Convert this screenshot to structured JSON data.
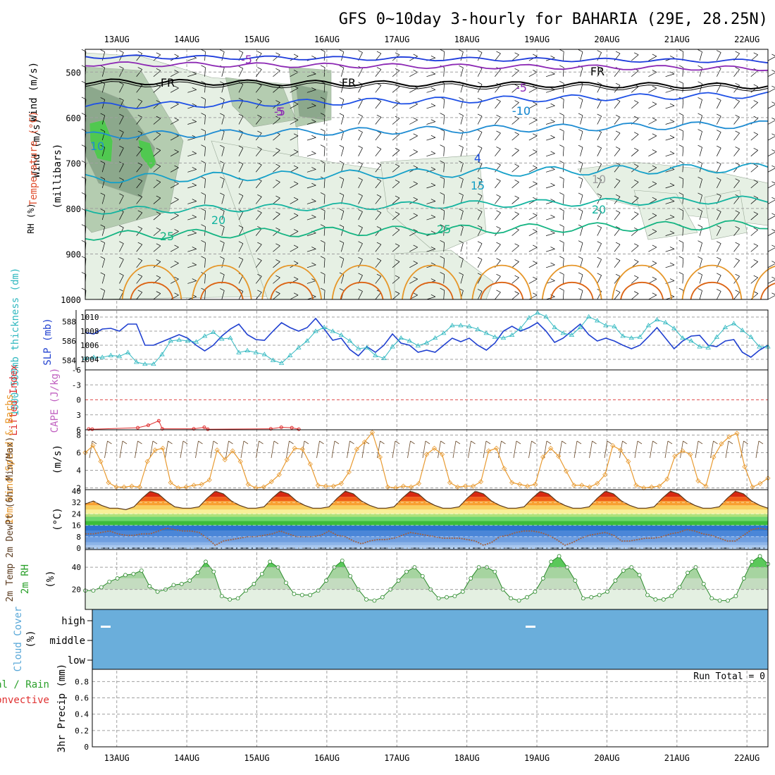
{
  "chart_data": [
    {
      "type": "meteogram",
      "title": "GFS 0~10day 3-hourly for BAHARIA (29E, 28.25N)",
      "x_dates": [
        "13AUG",
        "14AUG",
        "15AUG",
        "16AUG",
        "17AUG",
        "18AUG",
        "19AUG",
        "20AUG",
        "21AUG",
        "22AUG"
      ],
      "x_range_days": [
        12.55,
        22.3
      ],
      "colors": {
        "grid": "#a0a0a0",
        "frame": "#000000"
      }
    },
    {
      "panel": "upper-air",
      "type": "contour",
      "ylabel": "(millibars)",
      "label_wind": "Wind (m/s)",
      "label_temp": "Temperature (°C)",
      "label_rh": "RH (%)",
      "ylim": [
        1000,
        450
      ],
      "yticks": [
        500,
        600,
        700,
        800,
        900,
        1000
      ],
      "contour_labels": [
        "-5",
        "FR",
        "FR",
        "FR",
        "-5",
        "-5",
        "5",
        "-10",
        "10",
        "-10",
        "15",
        "20",
        "20",
        "25",
        "25",
        "4",
        "10"
      ],
      "isotherms_c": [
        -10,
        -5,
        0,
        5,
        10,
        15,
        20,
        25,
        30,
        35
      ],
      "colors": {
        "m10": "#1e3cdc",
        "m5": "#8c28b4",
        "fr": "#000000",
        "p5": "#1e50e6",
        "p10": "#1e8cd2",
        "p15": "#14a0c8",
        "p20": "#14b4a0",
        "p25": "#14b482",
        "p30": "#e69628",
        "p35": "#dc6414",
        "rh_light": "#e6f0e4",
        "rh_mid": "#b4ccb0",
        "rh_dark": "#8ca88c",
        "rh_green": "#50c850"
      }
    },
    {
      "panel": "slp-thickness",
      "type": "line",
      "label_left": "1000-500mb thickness (dm)",
      "label_right": "SLP (mb)",
      "left_ticks": [
        "584",
        "586",
        "588"
      ],
      "right_ticks": [
        "1004",
        "1006",
        "1008",
        "1010"
      ],
      "left_ylim": [
        583,
        589.2
      ],
      "series": [
        {
          "name": "SLP (mb)",
          "color": "#2040d0",
          "values": [
            1007.8,
            1007.6,
            1008.3,
            1008.4,
            1008.0,
            1009.0,
            1009.0,
            1006.0,
            1006.0,
            1006.5,
            1007.0,
            1007.5,
            1007.0,
            1006.0,
            1005.2,
            1006.0,
            1007.3,
            1008.3,
            1009.0,
            1007.5,
            1006.8,
            1006.7,
            1008.0,
            1009.2,
            1008.5,
            1008.0,
            1008.5,
            1009.8,
            1008.3,
            1006.7,
            1007.0,
            1005.4,
            1004.5,
            1005.8,
            1005.0,
            1006.0,
            1007.6,
            1006.3,
            1006.0,
            1005.0,
            1005.3,
            1005.0,
            1006.0,
            1007.0,
            1006.5,
            1007.0,
            1006.0,
            1005.3,
            1006.3,
            1008.0,
            1008.7,
            1008.0,
            1008.5,
            1009.2,
            1008.0,
            1006.4,
            1007.0,
            1008.0,
            1009.0,
            1007.5,
            1006.6,
            1007.0,
            1006.6,
            1006.0,
            1005.5,
            1006.0,
            1007.2,
            1008.5,
            1007.0,
            1005.5,
            1006.6,
            1007.3,
            1007.4,
            1006.0,
            1005.8,
            1006.6,
            1006.8,
            1005.0,
            1004.3,
            1005.3,
            1006.0
          ]
        },
        {
          "name": "1000-500mb thickness (dm)",
          "color": "#30b8c0",
          "values": [
            584.2,
            584.3,
            584.3,
            584.5,
            584.4,
            584.8,
            583.8,
            583.6,
            583.6,
            584.6,
            586.0,
            586.1,
            586.0,
            585.9,
            586.5,
            586.9,
            586.2,
            586.3,
            584.8,
            585.0,
            584.8,
            584.6,
            584.0,
            583.7,
            584.5,
            585.3,
            586.0,
            587.0,
            587.4,
            587.0,
            586.6,
            586.0,
            585.2,
            585.3,
            584.5,
            584.2,
            585.4,
            586.3,
            586.0,
            585.5,
            585.8,
            586.3,
            586.8,
            587.6,
            587.6,
            587.5,
            587.2,
            586.8,
            586.4,
            586.3,
            586.6,
            587.3,
            588.4,
            588.9,
            588.5,
            587.4,
            586.8,
            586.6,
            587.4,
            588.5,
            588.1,
            587.6,
            587.5,
            586.5,
            586.3,
            586.4,
            587.6,
            588.2,
            587.9,
            587.3,
            586.3,
            586.0,
            585.4,
            585.3,
            586.4,
            587.4,
            587.8,
            587.1,
            586.4,
            585.4,
            585.4
          ]
        }
      ]
    },
    {
      "panel": "stability",
      "type": "line",
      "label_left": "Lifted Index",
      "label_right": "CAPE (J/kg)",
      "yticks": [
        "-6",
        "-3",
        "0",
        "3",
        "6"
      ],
      "ylim": [
        -6,
        6
      ],
      "series": [
        {
          "name": "Lifted Index",
          "color": "#e03030",
          "points": [
            [
              12.6,
              5.85
            ],
            [
              12.65,
              5.9
            ],
            [
              13.3,
              5.6
            ],
            [
              13.45,
              5.1
            ],
            [
              13.6,
              4.2
            ],
            [
              13.65,
              5.8
            ],
            [
              14.1,
              5.8
            ],
            [
              14.25,
              5.5
            ],
            [
              14.3,
              5.9
            ],
            [
              15.2,
              5.8
            ],
            [
              15.35,
              5.5
            ],
            [
              15.5,
              5.6
            ],
            [
              15.6,
              5.9
            ]
          ]
        }
      ]
    },
    {
      "panel": "wind10m",
      "type": "line",
      "label_left": "10m Wind Speed & Barbs",
      "ylabel": "(m/s)",
      "yticks": [
        "2",
        "4",
        "6",
        "8"
      ],
      "ylim": [
        1.8,
        8.6
      ],
      "series": [
        {
          "name": "10m Wind Speed",
          "color": "#e89a30",
          "values": [
            6.0,
            6.8,
            5.0,
            2.6,
            2.1,
            2.1,
            2.2,
            2.1,
            5.0,
            6.3,
            6.5,
            2.6,
            2.0,
            2.1,
            2.3,
            2.4,
            2.9,
            6.3,
            5.2,
            6.2,
            5.0,
            2.4,
            2.0,
            2.1,
            2.7,
            3.5,
            5.2,
            6.5,
            6.4,
            4.7,
            2.3,
            2.2,
            2.2,
            2.5,
            3.8,
            6.4,
            7.2,
            8.3,
            5.5,
            2.1,
            2.0,
            2.2,
            2.1,
            2.5,
            5.8,
            6.5,
            5.8,
            2.6,
            2.1,
            2.2,
            2.2,
            2.7,
            6.2,
            6.5,
            4.2,
            2.6,
            2.4,
            2.2,
            2.4,
            5.5,
            6.5,
            5.6,
            3.9,
            2.3,
            2.3,
            2.1,
            2.5,
            3.5,
            6.8,
            6.3,
            5.0,
            2.3,
            2.0,
            2.1,
            2.2,
            3.0,
            5.6,
            6.2,
            5.8,
            2.8,
            2.2,
            5.5,
            7.0,
            7.8,
            8.2,
            4.4,
            2.1,
            2.5,
            3.1
          ]
        }
      ]
    },
    {
      "panel": "temp2m",
      "type": "area",
      "label_left": "2m Temp 2m DewPt (6hr Min/Max)",
      "ylabel": "(°C)",
      "yticks": [
        "0",
        "8",
        "16",
        "24",
        "32",
        "40"
      ],
      "ylim": [
        -1,
        41
      ],
      "series": [
        {
          "name": "2m Temp",
          "color": "#5a3a1e",
          "values": [
            31,
            33,
            30,
            28,
            28,
            27,
            29,
            35,
            40,
            38,
            33,
            29,
            28,
            28,
            29,
            35,
            40,
            38,
            33,
            30,
            28,
            28,
            29,
            35,
            40,
            38,
            33,
            30,
            28,
            28,
            29,
            35,
            40,
            38,
            33,
            30,
            28,
            28,
            29,
            35,
            40,
            38,
            33,
            30,
            28,
            28,
            29,
            35,
            40,
            38,
            33,
            30,
            28,
            28,
            29,
            35,
            40,
            38,
            33,
            30,
            28,
            28,
            29,
            35,
            40,
            38,
            33,
            30,
            28,
            28,
            29,
            35,
            40,
            38,
            33,
            30,
            28,
            28,
            29,
            35,
            40,
            38,
            33,
            30,
            28
          ]
        },
        {
          "name": "2m DewPt",
          "color": "#a06040",
          "values": [
            10,
            10,
            11,
            12,
            10,
            9,
            9,
            10,
            10,
            12,
            14,
            13,
            12,
            12,
            11,
            7,
            2,
            5,
            6,
            7,
            8,
            8,
            9,
            10,
            12,
            10,
            8,
            8,
            8,
            9,
            12,
            9,
            8,
            5,
            3,
            5,
            6,
            6,
            7,
            9,
            11,
            10,
            9,
            8,
            7,
            7,
            7,
            6,
            5,
            2,
            4,
            8,
            9,
            11,
            12,
            12,
            11,
            9,
            6,
            2,
            4,
            7,
            9,
            10,
            11,
            9,
            5,
            5,
            6,
            7,
            7,
            8,
            10,
            11,
            13,
            12,
            10,
            9,
            7,
            5,
            5,
            9,
            13,
            14,
            13
          ]
        }
      ]
    },
    {
      "panel": "rh2m",
      "type": "area",
      "label_left": "2m RH",
      "ylabel": "(%)",
      "yticks": [
        "20",
        "40"
      ],
      "ylim": [
        2,
        56
      ],
      "series": [
        {
          "name": "2m RH",
          "color": "#50c850",
          "values": [
            19,
            19,
            22,
            27,
            30,
            33,
            34,
            37,
            23,
            18,
            20,
            24,
            25,
            28,
            35,
            45,
            36,
            14,
            11,
            12,
            19,
            25,
            34,
            45,
            40,
            26,
            16,
            15,
            15,
            19,
            28,
            40,
            46,
            32,
            20,
            11,
            10,
            13,
            20,
            28,
            36,
            40,
            32,
            20,
            12,
            13,
            14,
            18,
            30,
            40,
            40,
            36,
            20,
            12,
            10,
            13,
            18,
            30,
            45,
            50,
            40,
            28,
            12,
            13,
            15,
            18,
            28,
            37,
            40,
            33,
            15,
            11,
            11,
            14,
            22,
            35,
            40,
            25,
            12,
            10,
            10,
            14,
            30,
            45,
            50,
            43
          ]
        }
      ]
    },
    {
      "panel": "cloud",
      "type": "heatmap",
      "label_left": "Cloud Cover",
      "ylabel": "(%)",
      "levels": [
        "high",
        "middle",
        "low"
      ],
      "colors": {
        "bg": "#6aaedb",
        "mark": "#ffffff"
      }
    },
    {
      "panel": "precip",
      "type": "bar",
      "label_left_a": "Total / Rain",
      "label_left_b": "Convective",
      "ylabel": "3hr Precip (mm)",
      "yticks": [
        "0",
        "0.2",
        "0.4",
        "0.6",
        "0.8"
      ],
      "ylim": [
        0,
        0.95
      ],
      "run_total": "Run Total = 0",
      "values": []
    }
  ]
}
